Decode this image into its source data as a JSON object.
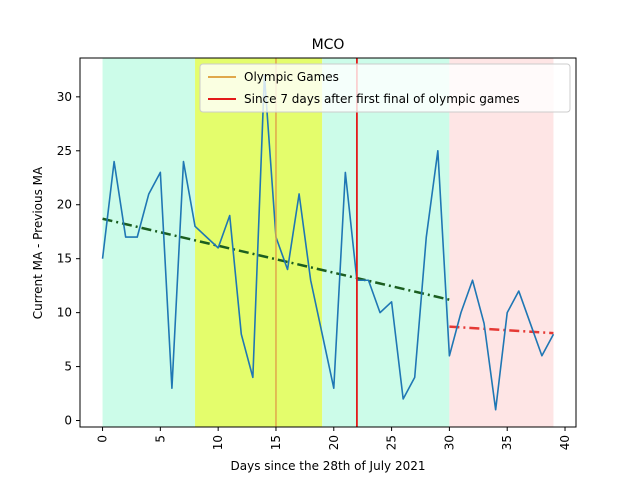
{
  "chart_data": {
    "type": "line",
    "title": "MCO",
    "xlabel": "Days since the 28th of July 2021",
    "ylabel": "Current MA - Previous MA",
    "xlim": [
      -1.95,
      40.95
    ],
    "ylim": [
      -0.6,
      33.6
    ],
    "xticks": [
      0,
      5,
      10,
      15,
      20,
      25,
      30,
      35,
      40
    ],
    "yticks": [
      0,
      5,
      10,
      15,
      20,
      25,
      30
    ],
    "grid": false,
    "legend_position": "top-right",
    "series": [
      {
        "color": "#1f77b4",
        "x": [
          0,
          1,
          2,
          3,
          4,
          5,
          6,
          7,
          8,
          9,
          10,
          11,
          12,
          13,
          14,
          15,
          16,
          17,
          18,
          19,
          20,
          21,
          22,
          23,
          24,
          25,
          26,
          27,
          28,
          29,
          30,
          31,
          32,
          33,
          34,
          35,
          36,
          37,
          38,
          39
        ],
        "y": [
          15,
          24,
          17,
          17,
          21,
          23,
          3,
          24,
          18,
          17,
          16,
          19,
          8,
          4,
          32,
          17,
          14,
          21,
          13,
          8,
          3,
          23,
          13,
          13,
          10,
          11,
          2,
          4,
          17,
          25,
          6,
          10,
          13,
          9,
          1,
          10,
          12,
          9,
          6,
          8
        ]
      }
    ],
    "trendlines": [
      {
        "color": "#1b5e20",
        "style": "dash-dot",
        "x": [
          0,
          30
        ],
        "y": [
          18.7,
          11.2
        ]
      },
      {
        "color": "#e53935",
        "style": "dash-dot",
        "x": [
          30,
          39
        ],
        "y": [
          8.7,
          8.1
        ]
      }
    ],
    "shaded_regions": [
      {
        "x": [
          0,
          8
        ],
        "color": "#ccfce9"
      },
      {
        "x": [
          8,
          19
        ],
        "color": "#e4fd6c"
      },
      {
        "x": [
          19,
          30
        ],
        "color": "#ccfce9"
      },
      {
        "x": [
          30,
          39
        ],
        "color": "#fee5e5"
      }
    ],
    "vlines": [
      {
        "x": 15,
        "color": "#e0a84a",
        "label": "Olympic Games"
      },
      {
        "x": 22,
        "color": "#e31a1a",
        "label": "Since 7 days after first final of olympic games"
      }
    ]
  }
}
